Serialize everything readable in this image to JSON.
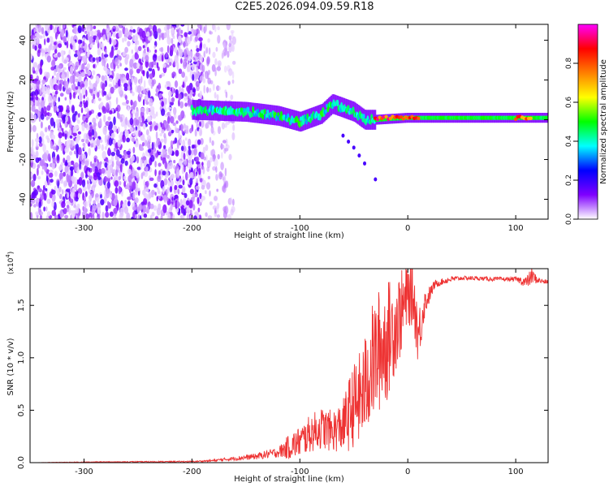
{
  "title": "C2E5.2026.094.09.59.R18",
  "chart_data": [
    {
      "type": "heatmap",
      "title": "C2E5.2026.094.09.59.R18",
      "xlabel": "Height of straight line (km)",
      "ylabel": "Frequency (Hz)",
      "xlim": [
        -350,
        130
      ],
      "ylim": [
        -50,
        48
      ],
      "x_ticks": [
        -300,
        -200,
        -100,
        0,
        100
      ],
      "y_ticks": [
        -40,
        -20,
        0,
        20,
        40
      ],
      "x_tick_labels": [
        "-300",
        "-200",
        "-100",
        "0",
        "100"
      ],
      "y_tick_labels": [
        "-40",
        "-20",
        "0",
        "20",
        "40"
      ],
      "colorbar": {
        "label": "Normalized spectral amplitude",
        "range": [
          0.0,
          1.0
        ],
        "ticks": [
          0.0,
          0.2,
          0.4,
          0.6,
          0.8
        ],
        "tick_labels": [
          "0.0",
          "0.2",
          "0.4",
          "0.6",
          "0.8"
        ],
        "colormap": [
          "#ffffff",
          "#7f00ff",
          "#0000ff",
          "#00ffff",
          "#00ff00",
          "#ffff00",
          "#ff8000",
          "#ff0000",
          "#ff00ff"
        ]
      },
      "features": [
        {
          "name": "noise-region",
          "x_range": [
            -350,
            -190
          ],
          "freq_range": [
            -50,
            48
          ],
          "amplitude": 0.1
        },
        {
          "name": "sparse-noise",
          "x_range": [
            -190,
            -160
          ],
          "freq_range": [
            -50,
            48
          ],
          "amplitude": 0.05
        },
        {
          "name": "carrier-band",
          "points": [
            [
              -200,
              5
            ],
            [
              -150,
              4
            ],
            [
              -120,
              2
            ],
            [
              -100,
              -1
            ],
            [
              -80,
              3
            ],
            [
              -70,
              8
            ],
            [
              -50,
              4
            ],
            [
              -40,
              0
            ],
            [
              -30,
              0
            ],
            [
              0,
              1
            ],
            [
              50,
              1
            ],
            [
              100,
              1
            ],
            [
              130,
              1
            ]
          ],
          "halfwidth_hz": 3
        },
        {
          "name": "high-amplitude-segment",
          "x_range": [
            -30,
            10
          ],
          "freq": 1,
          "amplitude": 0.95
        },
        {
          "name": "high-amplitude-segment",
          "x_range": [
            100,
            115
          ],
          "freq": 1,
          "amplitude": 0.9
        }
      ]
    },
    {
      "type": "line",
      "xlabel": "Height of straight line (km)",
      "ylabel": "SNR (10 * v/v)",
      "y_multiplier_label": "(x10",
      "y_multiplier_exp": "4",
      "xlim": [
        -350,
        130
      ],
      "ylim": [
        0,
        1.85
      ],
      "x_ticks": [
        -300,
        -200,
        -100,
        0,
        100
      ],
      "y_ticks": [
        0.0,
        0.5,
        1.0,
        1.5
      ],
      "x_tick_labels": [
        "-300",
        "-200",
        "-100",
        "0",
        "100"
      ],
      "y_tick_labels": [
        "0.0",
        "0.5",
        "1.0",
        "1.5"
      ],
      "series": [
        {
          "name": "SNR",
          "color": "#ee3333",
          "x": [
            -350,
            -300,
            -250,
            -200,
            -180,
            -160,
            -140,
            -120,
            -110,
            -100,
            -90,
            -80,
            -70,
            -60,
            -55,
            -50,
            -45,
            -40,
            -35,
            -30,
            -25,
            -20,
            -15,
            -10,
            -5,
            0,
            5,
            10,
            15,
            20,
            25,
            30,
            40,
            50,
            60,
            80,
            100,
            110,
            115,
            120,
            130
          ],
          "values": [
            0.0,
            0.005,
            0.008,
            0.01,
            0.02,
            0.04,
            0.06,
            0.1,
            0.15,
            0.2,
            0.28,
            0.33,
            0.3,
            0.35,
            0.45,
            0.55,
            0.6,
            0.7,
            0.9,
            1.0,
            1.1,
            1.15,
            1.25,
            1.35,
            1.45,
            1.6,
            1.6,
            1.2,
            1.5,
            1.6,
            1.7,
            1.72,
            1.75,
            1.76,
            1.76,
            1.75,
            1.75,
            1.72,
            1.78,
            1.74,
            1.72
          ],
          "noise": [
            0.0,
            0.004,
            0.005,
            0.006,
            0.01,
            0.02,
            0.03,
            0.05,
            0.12,
            0.15,
            0.18,
            0.2,
            0.2,
            0.25,
            0.35,
            0.4,
            0.45,
            0.5,
            0.55,
            0.6,
            0.6,
            0.6,
            0.5,
            0.45,
            0.4,
            0.3,
            0.3,
            0.3,
            0.15,
            0.08,
            0.04,
            0.03,
            0.03,
            0.02,
            0.02,
            0.02,
            0.02,
            0.06,
            0.08,
            0.03,
            0.02
          ]
        }
      ]
    }
  ]
}
